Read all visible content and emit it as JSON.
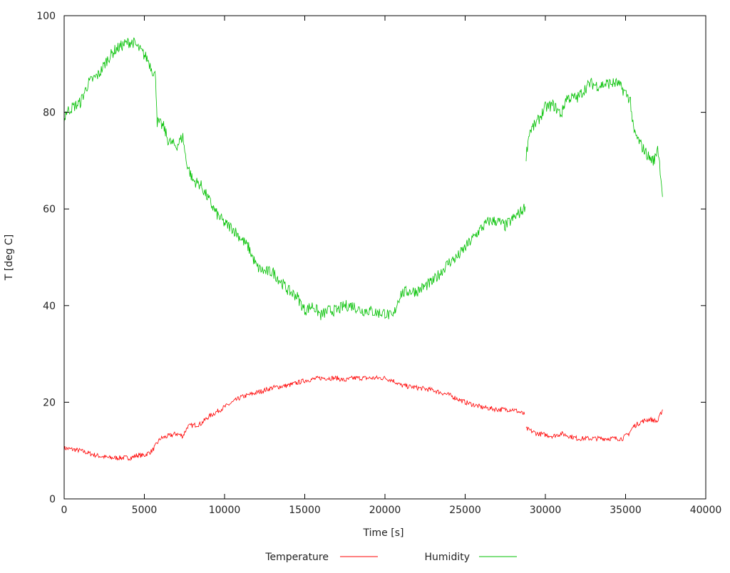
{
  "chart_data": {
    "type": "line",
    "title": "",
    "xlabel": "Time [s]",
    "ylabel": "T [deg C]",
    "xlim": [
      0,
      40000
    ],
    "ylim": [
      0,
      100
    ],
    "xticks": [
      0,
      5000,
      10000,
      15000,
      20000,
      25000,
      30000,
      35000,
      40000
    ],
    "yticks": [
      0,
      20,
      40,
      60,
      80,
      100
    ],
    "grid": false,
    "legend": "bottom-center",
    "series": [
      {
        "name": "Temperature",
        "color": "#ff0000",
        "x": [
          0,
          1000,
          1500,
          2000,
          2800,
          3500,
          4200,
          4500,
          5000,
          5500,
          6000,
          6500,
          7000,
          7400,
          7700,
          8500,
          9000,
          9500,
          10000,
          10500,
          11000,
          12000,
          12500,
          13000,
          14000,
          14500,
          15000,
          16000,
          17000,
          17500,
          18000,
          19000,
          20000,
          20500,
          21000,
          22000,
          23000,
          24000,
          25000,
          26000,
          27000,
          28000,
          28700,
          null,
          28800,
          29500,
          30500,
          31000,
          31500,
          32000,
          33000,
          34000,
          34800,
          35200,
          35500,
          36000,
          36500,
          37000,
          37300
        ],
        "y": [
          10.5,
          10,
          9.5,
          9,
          8.5,
          8.5,
          8.5,
          9,
          9,
          10,
          12.5,
          13,
          13.5,
          13,
          15,
          15.5,
          17,
          18,
          19,
          20,
          21,
          22,
          22.5,
          23,
          23.5,
          24,
          24.5,
          25,
          25,
          24.5,
          25,
          25,
          25,
          24.5,
          23.5,
          23,
          22.5,
          21.5,
          20,
          19,
          18.5,
          18.5,
          17.5,
          null,
          14.5,
          13.5,
          13,
          13.5,
          13,
          12.5,
          12.5,
          12.5,
          12.5,
          13.5,
          15,
          16,
          16.5,
          16,
          18.5
        ]
      },
      {
        "name": "Humidity",
        "color": "#00c000",
        "x": [
          0,
          100,
          500,
          1000,
          1500,
          2200,
          2700,
          3200,
          3700,
          4000,
          4300,
          4700,
          5200,
          5600,
          5700,
          5800,
          6200,
          6500,
          7000,
          7400,
          7600,
          8000,
          8500,
          9000,
          9500,
          10000,
          10500,
          11000,
          11500,
          12000,
          12500,
          13000,
          13500,
          14000,
          14500,
          15000,
          15500,
          16000,
          16500,
          17000,
          17500,
          18000,
          18500,
          19000,
          19500,
          20000,
          20500,
          20800,
          21000,
          21500,
          22000,
          22500,
          23000,
          23500,
          24000,
          24500,
          25000,
          25500,
          26000,
          26500,
          27000,
          27500,
          28000,
          28500,
          28750,
          null,
          28800,
          29000,
          29500,
          30000,
          30500,
          31000,
          31300,
          32000,
          32500,
          32800,
          33300,
          34000,
          34500,
          35000,
          35300,
          35500,
          36000,
          36500,
          36800,
          37000,
          37200,
          37300
        ],
        "y": [
          78,
          80,
          81,
          82,
          86,
          88,
          91,
          93,
          94,
          94.5,
          94.5,
          93,
          91,
          88,
          87.5,
          78,
          77,
          74,
          73,
          75,
          70,
          66,
          65,
          62,
          59,
          57,
          56,
          54,
          52,
          48,
          47,
          47,
          45,
          43,
          42,
          39,
          40,
          38,
          39,
          39,
          40,
          40,
          39,
          39,
          38.5,
          38.5,
          37.5,
          41,
          42.5,
          43,
          43,
          44,
          45,
          47,
          49,
          50,
          52,
          54,
          56,
          57.5,
          57.5,
          56.5,
          58,
          59.5,
          60.5,
          null,
          71,
          76,
          78,
          81,
          81.5,
          79.5,
          83,
          83,
          85,
          86,
          85.5,
          86,
          86,
          84,
          82.5,
          76,
          73,
          70.5,
          70,
          73,
          67,
          62.5
        ]
      }
    ]
  }
}
